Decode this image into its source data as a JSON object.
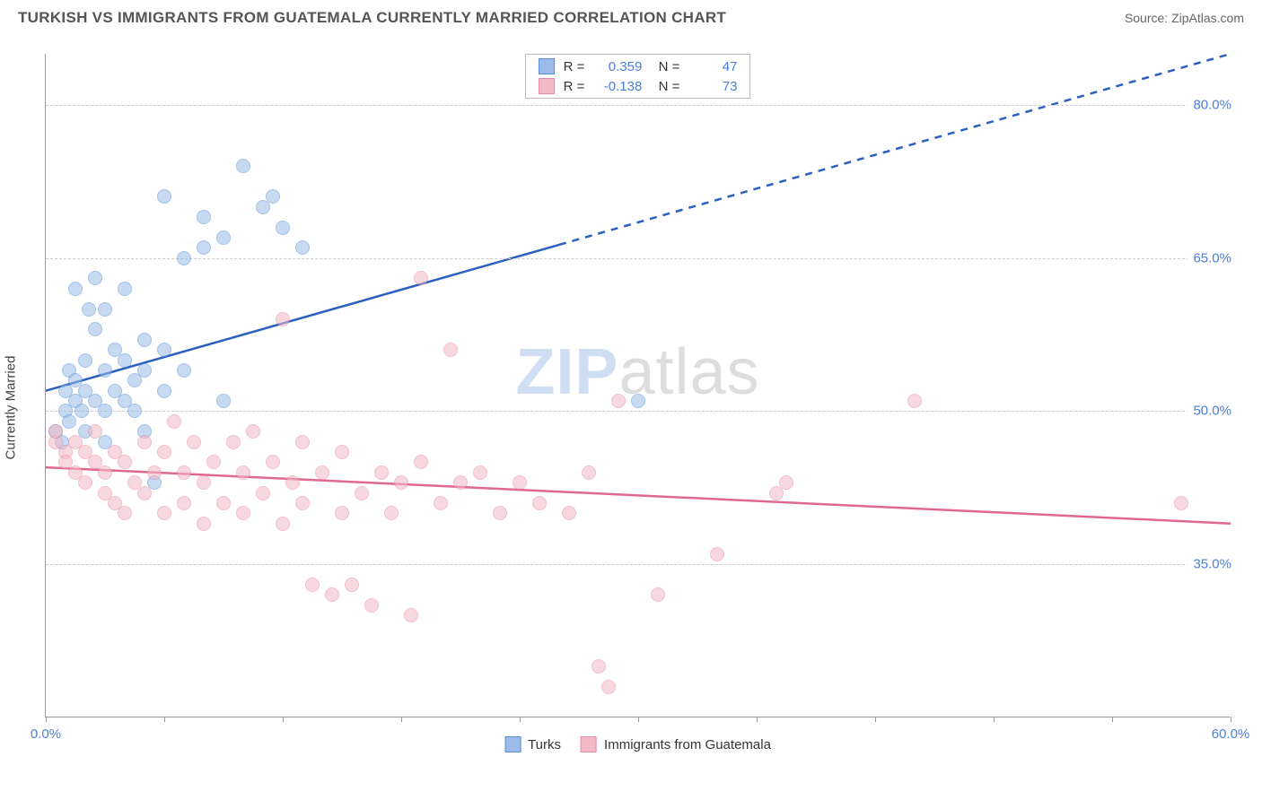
{
  "title": "TURKISH VS IMMIGRANTS FROM GUATEMALA CURRENTLY MARRIED CORRELATION CHART",
  "source_label": "Source: ZipAtlas.com",
  "ylabel": "Currently Married",
  "watermark": {
    "part1": "ZIP",
    "part2": "atlas"
  },
  "chart": {
    "type": "scatter",
    "background_color": "#ffffff",
    "grid_color": "#cccccc",
    "axis_color": "#999999",
    "xlim": [
      0,
      60
    ],
    "ylim": [
      20,
      85
    ],
    "xticks": [
      0,
      6,
      12,
      18,
      24,
      30,
      36,
      42,
      48,
      54,
      60
    ],
    "xtick_labels_shown": {
      "0": "0.0%",
      "60": "60.0%"
    },
    "yticks": [
      35,
      50,
      65,
      80
    ],
    "ytick_labels": [
      "35.0%",
      "50.0%",
      "65.0%",
      "80.0%"
    ],
    "tick_label_color": "#4a7fd6",
    "tick_fontsize": 15,
    "marker_radius": 8,
    "marker_opacity": 0.55,
    "series": [
      {
        "name": "Turks",
        "fill_color": "#9bbce8",
        "stroke_color": "#5a8fd6",
        "trend_color": "#2b5fc0",
        "trend_width": 2.5,
        "trend_dash_solid_until_x": 26,
        "R": "0.359",
        "N": "47",
        "trend": {
          "x1": 0,
          "y1": 52,
          "x2": 60,
          "y2": 85
        },
        "points": [
          [
            0.5,
            48
          ],
          [
            0.8,
            47
          ],
          [
            1.0,
            50
          ],
          [
            1.0,
            52
          ],
          [
            1.2,
            54
          ],
          [
            1.2,
            49
          ],
          [
            1.5,
            51
          ],
          [
            1.5,
            53
          ],
          [
            1.5,
            62
          ],
          [
            1.8,
            50
          ],
          [
            2.0,
            52
          ],
          [
            2.0,
            55
          ],
          [
            2.0,
            48
          ],
          [
            2.2,
            60
          ],
          [
            2.5,
            51
          ],
          [
            2.5,
            58
          ],
          [
            2.5,
            63
          ],
          [
            3.0,
            50
          ],
          [
            3.0,
            54
          ],
          [
            3.0,
            60
          ],
          [
            3.0,
            47
          ],
          [
            3.5,
            52
          ],
          [
            3.5,
            56
          ],
          [
            4.0,
            51
          ],
          [
            4.0,
            55
          ],
          [
            4.0,
            62
          ],
          [
            4.5,
            53
          ],
          [
            4.5,
            50
          ],
          [
            5.0,
            54
          ],
          [
            5.0,
            48
          ],
          [
            5.0,
            57
          ],
          [
            5.5,
            43
          ],
          [
            6.0,
            52
          ],
          [
            6.0,
            56
          ],
          [
            6.0,
            71
          ],
          [
            7.0,
            54
          ],
          [
            7.0,
            65
          ],
          [
            8.0,
            69
          ],
          [
            8.0,
            66
          ],
          [
            9.0,
            67
          ],
          [
            9.0,
            51
          ],
          [
            10.0,
            74
          ],
          [
            11.0,
            70
          ],
          [
            11.5,
            71
          ],
          [
            12.0,
            68
          ],
          [
            13.0,
            66
          ],
          [
            30.0,
            51
          ]
        ]
      },
      {
        "name": "Immigrants from Guatemala",
        "fill_color": "#f4b9c7",
        "stroke_color": "#e88aa5",
        "trend_color": "#e06890",
        "trend_width": 2.5,
        "trend_dash_solid_until_x": 60,
        "R": "-0.138",
        "N": "73",
        "trend": {
          "x1": 0,
          "y1": 44.5,
          "x2": 60,
          "y2": 39
        },
        "points": [
          [
            0.5,
            47
          ],
          [
            0.5,
            48
          ],
          [
            1.0,
            46
          ],
          [
            1.0,
            45
          ],
          [
            1.5,
            44
          ],
          [
            1.5,
            47
          ],
          [
            2.0,
            46
          ],
          [
            2.0,
            43
          ],
          [
            2.5,
            45
          ],
          [
            2.5,
            48
          ],
          [
            3.0,
            44
          ],
          [
            3.0,
            42
          ],
          [
            3.5,
            46
          ],
          [
            3.5,
            41
          ],
          [
            4.0,
            45
          ],
          [
            4.0,
            40
          ],
          [
            4.5,
            43
          ],
          [
            5.0,
            47
          ],
          [
            5.0,
            42
          ],
          [
            5.5,
            44
          ],
          [
            6.0,
            46
          ],
          [
            6.0,
            40
          ],
          [
            6.5,
            49
          ],
          [
            7.0,
            44
          ],
          [
            7.0,
            41
          ],
          [
            7.5,
            47
          ],
          [
            8.0,
            43
          ],
          [
            8.0,
            39
          ],
          [
            8.5,
            45
          ],
          [
            9.0,
            41
          ],
          [
            9.5,
            47
          ],
          [
            10.0,
            44
          ],
          [
            10.0,
            40
          ],
          [
            10.5,
            48
          ],
          [
            11.0,
            42
          ],
          [
            11.5,
            45
          ],
          [
            12.0,
            39
          ],
          [
            12.0,
            59
          ],
          [
            12.5,
            43
          ],
          [
            13.0,
            41
          ],
          [
            13.0,
            47
          ],
          [
            13.5,
            33
          ],
          [
            14.0,
            44
          ],
          [
            14.5,
            32
          ],
          [
            15.0,
            46
          ],
          [
            15.0,
            40
          ],
          [
            15.5,
            33
          ],
          [
            16.0,
            42
          ],
          [
            16.5,
            31
          ],
          [
            17.0,
            44
          ],
          [
            17.5,
            40
          ],
          [
            18.0,
            43
          ],
          [
            18.5,
            30
          ],
          [
            19.0,
            63
          ],
          [
            19.0,
            45
          ],
          [
            20.0,
            41
          ],
          [
            20.5,
            56
          ],
          [
            21.0,
            43
          ],
          [
            22.0,
            44
          ],
          [
            23.0,
            40
          ],
          [
            24.0,
            43
          ],
          [
            25.0,
            41
          ],
          [
            26.5,
            40
          ],
          [
            27.5,
            44
          ],
          [
            28.0,
            25
          ],
          [
            28.5,
            23
          ],
          [
            29.0,
            51
          ],
          [
            31.0,
            32
          ],
          [
            34.0,
            36
          ],
          [
            37.0,
            42
          ],
          [
            37.5,
            43
          ],
          [
            44.0,
            51
          ],
          [
            57.5,
            41
          ]
        ]
      }
    ]
  },
  "legend_bottom": [
    {
      "label": "Turks",
      "fill": "#9bbce8",
      "stroke": "#5a8fd6"
    },
    {
      "label": "Immigrants from Guatemala",
      "fill": "#f4b9c7",
      "stroke": "#e88aa5"
    }
  ]
}
